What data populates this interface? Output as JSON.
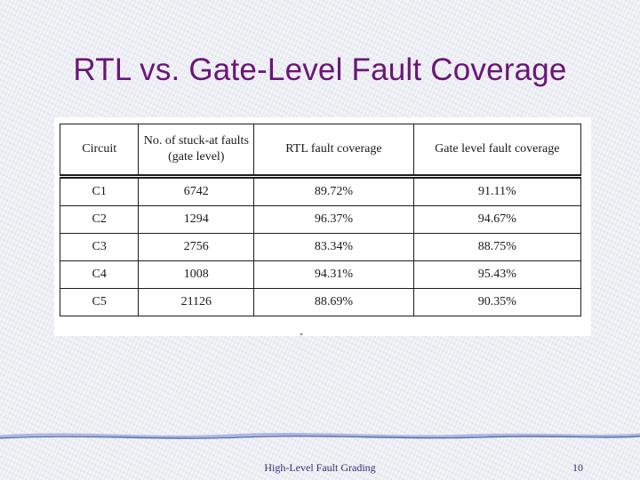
{
  "slide": {
    "title": "RTL vs. Gate-Level Fault Coverage",
    "footer": "High-Level Fault Grading",
    "page_number": "10"
  },
  "table": {
    "headers": [
      "Circuit",
      [
        "No. of stuck-at faults",
        "(gate level)"
      ],
      "RTL fault coverage",
      "Gate level fault coverage"
    ],
    "rows": [
      [
        "C1",
        "6742",
        "89.72%",
        "91.11%"
      ],
      [
        "C2",
        "1294",
        "96.37%",
        "94.67%"
      ],
      [
        "C3",
        "2756",
        "83.34%",
        "88.75%"
      ],
      [
        "C4",
        "1008",
        "94.31%",
        "95.43%"
      ],
      [
        "C5",
        "21126",
        "88.69%",
        "90.35%"
      ]
    ]
  },
  "colors": {
    "title": "#6b1578",
    "footer_lines": [
      "#a9b6de",
      "#4f63a8"
    ]
  }
}
